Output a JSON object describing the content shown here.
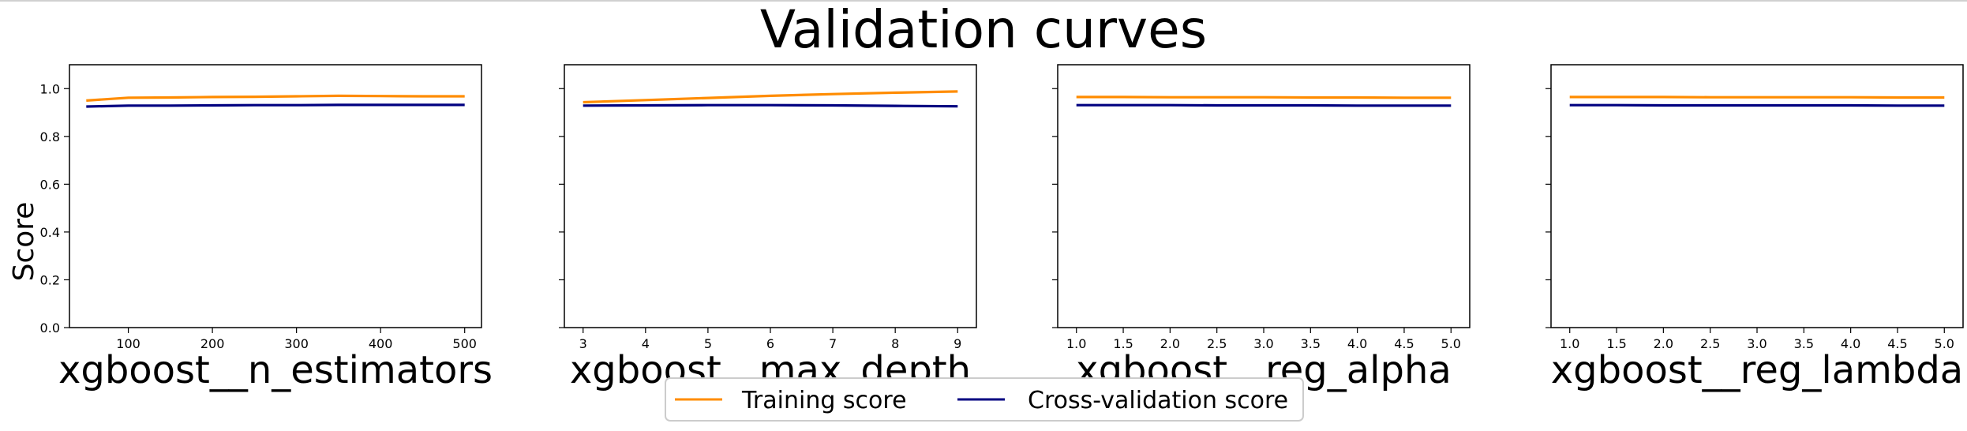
{
  "title": "Validation curves",
  "ylabel": "Score",
  "legend": {
    "entries": [
      {
        "label": "Training score",
        "color": "#ff8c00"
      },
      {
        "label": "Cross-validation score",
        "color": "#000080"
      }
    ],
    "placement": "bottom-center"
  },
  "chart_data": [
    {
      "type": "line",
      "xlabel": "xgboost__n_estimators",
      "ylabel": "Score",
      "xlim": [
        30,
        520
      ],
      "ylim": [
        0,
        1.1
      ],
      "xticks": [
        100,
        200,
        300,
        400,
        500
      ],
      "yticks": [
        0.0,
        0.2,
        0.4,
        0.6,
        0.8,
        1.0
      ],
      "ytick_labels_visible": true,
      "x": [
        50,
        100,
        150,
        200,
        250,
        300,
        350,
        400,
        450,
        500
      ],
      "series": [
        {
          "name": "Training score",
          "color": "#ff8c00",
          "values": [
            0.95,
            0.962,
            0.963,
            0.965,
            0.966,
            0.968,
            0.97,
            0.969,
            0.968,
            0.968
          ]
        },
        {
          "name": "Cross-validation score",
          "color": "#000080",
          "values": [
            0.925,
            0.929,
            0.929,
            0.93,
            0.931,
            0.931,
            0.932,
            0.932,
            0.932,
            0.932
          ]
        }
      ]
    },
    {
      "type": "line",
      "xlabel": "xgboost__max_depth",
      "ylabel": "",
      "xlim": [
        2.7,
        9.3
      ],
      "ylim": [
        0,
        1.1
      ],
      "xticks": [
        3,
        4,
        5,
        6,
        7,
        8,
        9
      ],
      "yticks": [
        0.0,
        0.2,
        0.4,
        0.6,
        0.8,
        1.0
      ],
      "ytick_labels_visible": false,
      "x": [
        3,
        4,
        5,
        6,
        7,
        8,
        9
      ],
      "series": [
        {
          "name": "Training score",
          "color": "#ff8c00",
          "values": [
            0.943,
            0.952,
            0.961,
            0.97,
            0.977,
            0.983,
            0.988
          ]
        },
        {
          "name": "Cross-validation score",
          "color": "#000080",
          "values": [
            0.929,
            0.93,
            0.931,
            0.931,
            0.93,
            0.928,
            0.926
          ]
        }
      ]
    },
    {
      "type": "line",
      "xlabel": "xgboost__reg_alpha",
      "ylabel": "",
      "xlim": [
        0.8,
        5.2
      ],
      "ylim": [
        0,
        1.1
      ],
      "xticks": [
        1.0,
        1.5,
        2.0,
        2.5,
        3.0,
        3.5,
        4.0,
        4.5,
        5.0
      ],
      "yticks": [
        0.0,
        0.2,
        0.4,
        0.6,
        0.8,
        1.0
      ],
      "ytick_labels_visible": false,
      "x": [
        1.0,
        1.5,
        2.0,
        2.5,
        3.0,
        3.5,
        4.0,
        4.5,
        5.0
      ],
      "series": [
        {
          "name": "Training score",
          "color": "#ff8c00",
          "values": [
            0.965,
            0.965,
            0.964,
            0.964,
            0.964,
            0.963,
            0.963,
            0.962,
            0.962
          ]
        },
        {
          "name": "Cross-validation score",
          "color": "#000080",
          "values": [
            0.931,
            0.931,
            0.931,
            0.93,
            0.93,
            0.93,
            0.929,
            0.929,
            0.929
          ]
        }
      ]
    },
    {
      "type": "line",
      "xlabel": "xgboost__reg_lambda",
      "ylabel": "",
      "xlim": [
        0.8,
        5.2
      ],
      "ylim": [
        0,
        1.1
      ],
      "xticks": [
        1.0,
        1.5,
        2.0,
        2.5,
        3.0,
        3.5,
        4.0,
        4.5,
        5.0
      ],
      "yticks": [
        0.0,
        0.2,
        0.4,
        0.6,
        0.8,
        1.0
      ],
      "ytick_labels_visible": false,
      "x": [
        1.0,
        1.5,
        2.0,
        2.5,
        3.0,
        3.5,
        4.0,
        4.5,
        5.0
      ],
      "series": [
        {
          "name": "Training score",
          "color": "#ff8c00",
          "values": [
            0.965,
            0.965,
            0.965,
            0.964,
            0.964,
            0.964,
            0.964,
            0.963,
            0.963
          ]
        },
        {
          "name": "Cross-validation score",
          "color": "#000080",
          "values": [
            0.931,
            0.931,
            0.93,
            0.93,
            0.93,
            0.93,
            0.93,
            0.929,
            0.929
          ]
        }
      ]
    }
  ]
}
